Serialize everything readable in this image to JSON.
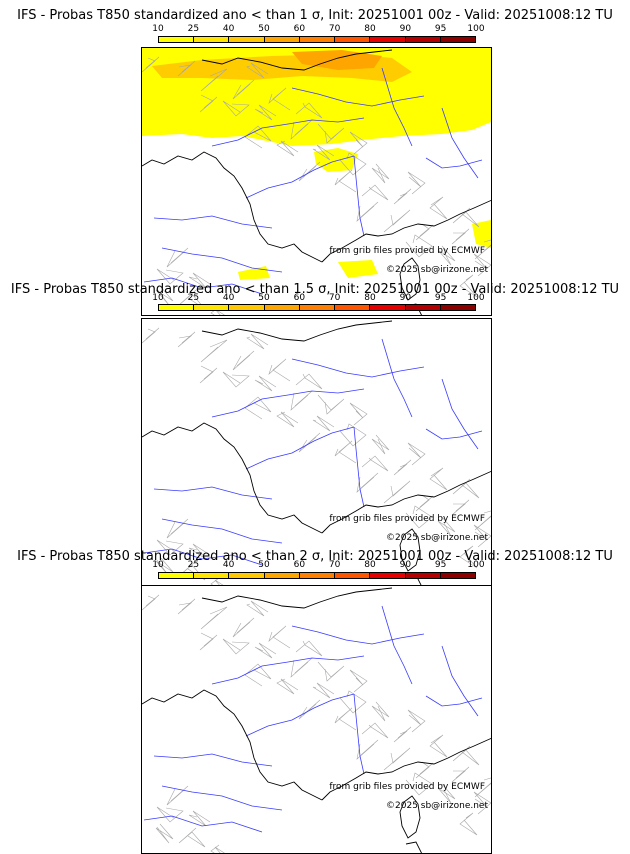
{
  "colorbar": {
    "ticks": [
      "10",
      "25",
      "40",
      "50",
      "60",
      "70",
      "80",
      "90",
      "95",
      "100"
    ],
    "colors": [
      "#ffff00",
      "#ffe600",
      "#ffc800",
      "#ffa500",
      "#ff8000",
      "#ff5500",
      "#e60000",
      "#b40000",
      "#8c0000"
    ]
  },
  "panels": [
    {
      "title": "IFS - Probas T850  standardized ano < than 1 σ, Init: 20251001 00z - Valid: 20251008:12 TU",
      "credit_source": "from grib files provided by ECMWF",
      "credit_copyright": "©2025 sb@irizone.net"
    },
    {
      "title": "IFS - Probas T850  standardized ano < than 1.5 σ, Init: 20251001 00z - Valid: 20251008:12 TU",
      "credit_source": "from grib files provided by ECMWF",
      "credit_copyright": "©2025 sb@irizone.net"
    },
    {
      "title": "IFS - Probas T850  standardized ano < than 2 σ, Init: 20251001 00z - Valid: 20251008:12 TU",
      "credit_source": "from grib files provided by ECMWF",
      "credit_copyright": "©2025 sb@irizone.net"
    }
  ]
}
